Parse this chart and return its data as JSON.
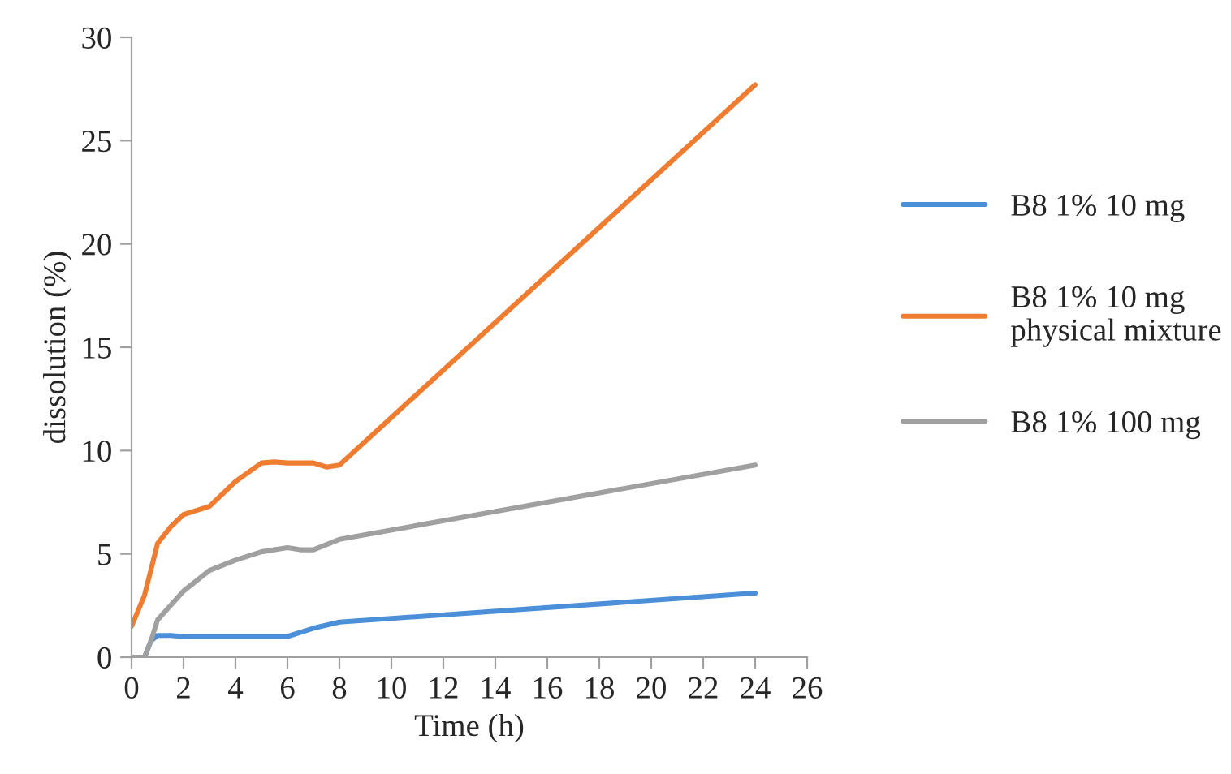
{
  "chart_data": {
    "type": "line",
    "xlabel": "Time (h)",
    "ylabel": "dissolution (%)",
    "xlim": [
      0,
      26
    ],
    "xticks": [
      0,
      2,
      4,
      6,
      8,
      10,
      12,
      14,
      16,
      18,
      20,
      22,
      24,
      26
    ],
    "ylim": [
      0,
      30
    ],
    "yticks": [
      0,
      5,
      10,
      15,
      20,
      25,
      30
    ],
    "grid": false,
    "legend": "right",
    "marker": "none",
    "line_style": "solid",
    "series": [
      {
        "name": "B8 1% 10 mg",
        "color": "#4a8fd8",
        "x": [
          0,
          0.5,
          0.75,
          1,
          1.5,
          2,
          4,
          5,
          6,
          7,
          8,
          24
        ],
        "values": [
          0,
          0,
          0.8,
          1.05,
          1.05,
          1.0,
          1.0,
          1.0,
          1.0,
          1.4,
          1.7,
          3.1
        ]
      },
      {
        "name": "B8 1% 10 mg\nphysical mixture",
        "color": "#ef7d31",
        "x": [
          0,
          0.5,
          1,
          1.5,
          2,
          2.5,
          3,
          4,
          5,
          5.5,
          6,
          7,
          7.5,
          8,
          24
        ],
        "values": [
          1.5,
          3,
          5.5,
          6.3,
          6.9,
          7.1,
          7.3,
          8.5,
          9.4,
          9.45,
          9.4,
          9.4,
          9.2,
          9.3,
          27.7
        ]
      },
      {
        "name": "B8 1% 100 mg",
        "color": "#a0a0a0",
        "x": [
          0,
          0.5,
          0.75,
          1,
          2,
          3,
          4,
          5,
          6,
          6.5,
          7,
          8,
          24
        ],
        "values": [
          0,
          0,
          0.8,
          1.8,
          3.2,
          4.2,
          4.7,
          5.1,
          5.3,
          5.2,
          5.2,
          5.7,
          9.3
        ]
      }
    ]
  }
}
